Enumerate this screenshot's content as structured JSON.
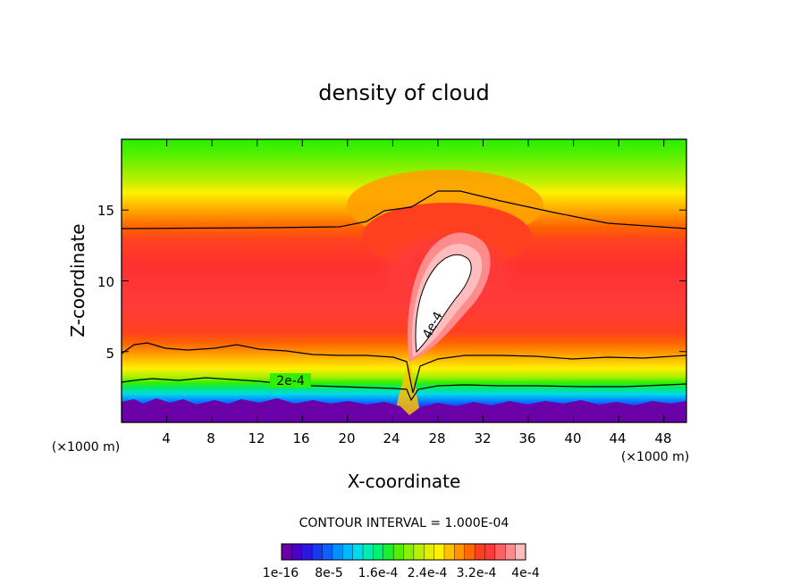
{
  "chart_data": {
    "type": "heatmap",
    "title": "density of cloud",
    "xlabel": "X-coordinate",
    "ylabel": "Z-coordinate",
    "x_unit": "(×1000 m)",
    "xlim": [
      0,
      50
    ],
    "ylim": [
      0,
      20
    ],
    "x_ticks": [
      "4",
      "8",
      "12",
      "16",
      "20",
      "24",
      "28",
      "32",
      "36",
      "40",
      "44",
      "48"
    ],
    "x_tick_values": [
      4,
      8,
      12,
      16,
      20,
      24,
      28,
      32,
      36,
      40,
      44,
      48
    ],
    "y_ticks": [
      "5",
      "10",
      "15"
    ],
    "y_tick_values": [
      5,
      10,
      15
    ],
    "contour_interval_text": "CONTOUR INTERVAL = 1.000E-04",
    "contour_labels": [
      {
        "text": "2e-4",
        "x": 15,
        "z": 3
      },
      {
        "text": "4e-4",
        "x": 28,
        "z": 7
      }
    ],
    "colorbar": {
      "labels": [
        "1e-16",
        "8e-5",
        "1.6e-4",
        "2.4e-4",
        "3.2e-4",
        "4e-4"
      ],
      "colors": [
        "#6a00a8",
        "#4a00c8",
        "#2a18e0",
        "#1838f0",
        "#1060ff",
        "#0090ff",
        "#00b8ff",
        "#00dcec",
        "#00ecb4",
        "#00f070",
        "#18f030",
        "#50f000",
        "#88f000",
        "#b8f000",
        "#e0f000",
        "#fff000",
        "#ffc000",
        "#ff9400",
        "#ff6a00",
        "#ff4020",
        "#ff3a3a",
        "#ff6060",
        "#ff8c8c",
        "#ffbcbc"
      ]
    },
    "field_colors": {
      "top": "#28f000",
      "upper": "#78f000",
      "mid_high": "#ffd800",
      "red_core": "#ff3030",
      "max_region": "#ffffff",
      "low_green": "#00e860",
      "low_blue": "#1040ff",
      "ground": "#7000a8"
    }
  }
}
